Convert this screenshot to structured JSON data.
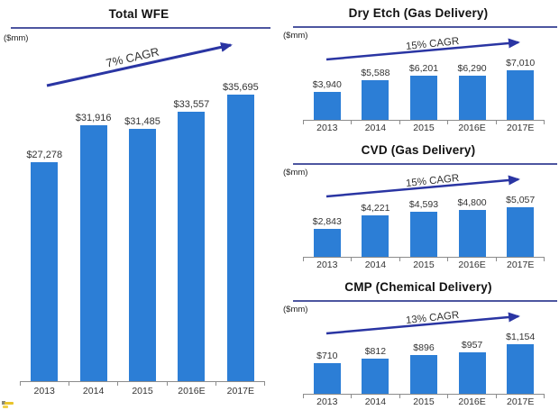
{
  "colors": {
    "bar": "#2c7ed6",
    "arrow": "#2a35a3",
    "underline": "#4d56a0",
    "axis": "#8c8c8c"
  },
  "chart_data": [
    {
      "type": "bar",
      "title": "Total WFE",
      "unit_label": "($mm)",
      "cagr_label": "7% CAGR",
      "categories": [
        "2013",
        "2014",
        "2015",
        "2016E",
        "2017E"
      ],
      "values": [
        27278,
        31916,
        31485,
        33557,
        35695
      ],
      "value_labels": [
        "$27,278",
        "$31,916",
        "$31,485",
        "$33,557",
        "$35,695"
      ],
      "xlabel": "",
      "ylabel": "($mm)",
      "ylim": [
        0,
        35695
      ],
      "grid": false,
      "legend": "none"
    },
    {
      "type": "bar",
      "title": "Dry Etch (Gas Delivery)",
      "unit_label": "($mm)",
      "cagr_label": "15% CAGR",
      "categories": [
        "2013",
        "2014",
        "2015",
        "2016E",
        "2017E"
      ],
      "values": [
        3940,
        5588,
        6201,
        6290,
        7010
      ],
      "value_labels": [
        "$3,940",
        "$5,588",
        "$6,201",
        "$6,290",
        "$7,010"
      ],
      "xlabel": "",
      "ylabel": "($mm)",
      "ylim": [
        0,
        7010
      ],
      "grid": false,
      "legend": "none"
    },
    {
      "type": "bar",
      "title": "CVD (Gas Delivery)",
      "unit_label": "($mm)",
      "cagr_label": "15% CAGR",
      "categories": [
        "2013",
        "2014",
        "2015",
        "2016E",
        "2017E"
      ],
      "values": [
        2843,
        4221,
        4593,
        4800,
        5057
      ],
      "value_labels": [
        "$2,843",
        "$4,221",
        "$4,593",
        "$4,800",
        "$5,057"
      ],
      "xlabel": "",
      "ylabel": "($mm)",
      "ylim": [
        0,
        5057
      ],
      "grid": false,
      "legend": "none"
    },
    {
      "type": "bar",
      "title": "CMP (Chemical Delivery)",
      "unit_label": "($mm)",
      "cagr_label": "13% CAGR",
      "categories": [
        "2013",
        "2014",
        "2015",
        "2016E",
        "2017E"
      ],
      "values": [
        710,
        812,
        896,
        957,
        1154
      ],
      "value_labels": [
        "$710",
        "$812",
        "$896",
        "$957",
        "$1,154"
      ],
      "xlabel": "",
      "ylabel": "($mm)",
      "ylim": [
        0,
        1154
      ],
      "grid": false,
      "legend": "none"
    }
  ]
}
